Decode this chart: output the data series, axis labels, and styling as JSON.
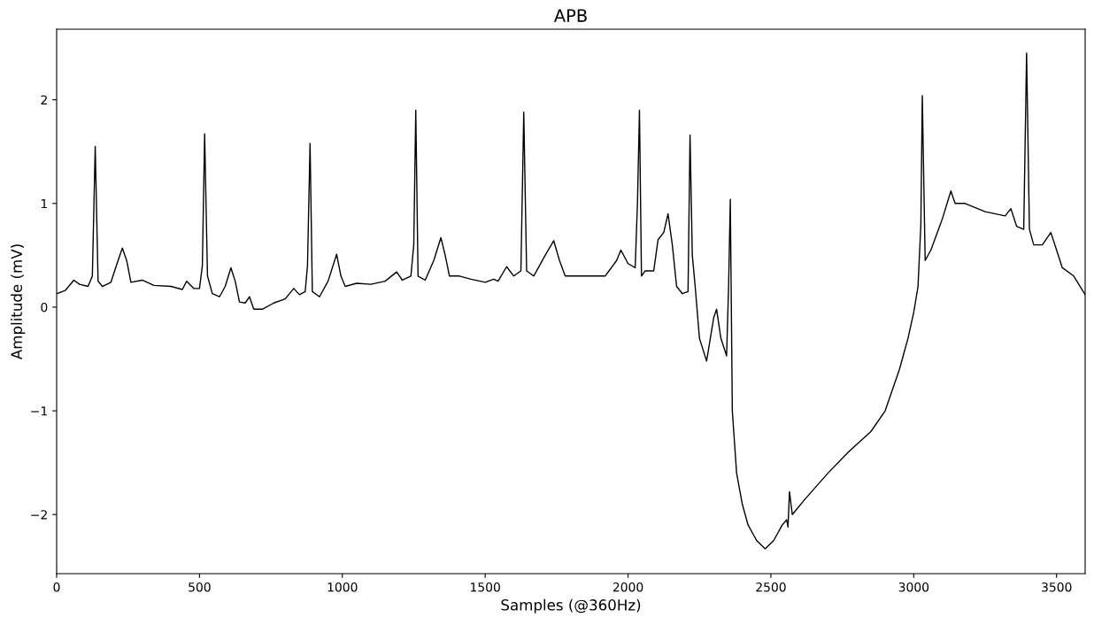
{
  "chart_data": {
    "type": "line",
    "title": "APB",
    "xlabel": "Samples (@360Hz)",
    "ylabel": "Amplitude (mV)",
    "xlim": [
      0,
      3600
    ],
    "xticks": [
      0,
      500,
      1000,
      1500,
      2000,
      2500,
      3000,
      3500
    ],
    "ylim": [
      -2.57,
      2.68
    ],
    "yticks": [
      {
        "value": -2,
        "label": "−2"
      },
      {
        "value": -1,
        "label": "−1"
      },
      0,
      1,
      2
    ],
    "grid": false,
    "legend": false,
    "marker": "none",
    "line_style": "solid",
    "series": [
      {
        "color": "#000000",
        "x": [
          0,
          30,
          60,
          80,
          110,
          125,
          135,
          145,
          160,
          190,
          215,
          230,
          245,
          260,
          300,
          340,
          400,
          440,
          455,
          480,
          500,
          510,
          518,
          528,
          545,
          570,
          590,
          610,
          625,
          640,
          660,
          675,
          690,
          720,
          760,
          800,
          830,
          850,
          870,
          878,
          887,
          895,
          920,
          950,
          980,
          995,
          1010,
          1050,
          1100,
          1150,
          1190,
          1210,
          1240,
          1250,
          1257,
          1265,
          1290,
          1320,
          1345,
          1360,
          1375,
          1410,
          1450,
          1500,
          1530,
          1545,
          1575,
          1600,
          1625,
          1635,
          1645,
          1670,
          1710,
          1740,
          1760,
          1780,
          1820,
          1870,
          1920,
          1960,
          1975,
          2000,
          2025,
          2033,
          2040,
          2047,
          2060,
          2090,
          2105,
          2125,
          2140,
          2155,
          2170,
          2190,
          2210,
          2217,
          2225,
          2235,
          2250,
          2275,
          2300,
          2310,
          2325,
          2345,
          2352,
          2358,
          2365,
          2380,
          2400,
          2420,
          2450,
          2480,
          2510,
          2540,
          2555,
          2560,
          2565,
          2575,
          2620,
          2700,
          2770,
          2850,
          2900,
          2950,
          2980,
          3000,
          3015,
          3025,
          3030,
          3040,
          3060,
          3100,
          3130,
          3145,
          3180,
          3250,
          3320,
          3340,
          3360,
          3385,
          3395,
          3405,
          3420,
          3450,
          3480,
          3500,
          3520,
          3560,
          3600
        ],
        "values": [
          0.13,
          0.16,
          0.26,
          0.22,
          0.2,
          0.3,
          1.55,
          0.25,
          0.2,
          0.24,
          0.45,
          0.57,
          0.45,
          0.24,
          0.26,
          0.21,
          0.2,
          0.17,
          0.25,
          0.18,
          0.18,
          0.4,
          1.67,
          0.3,
          0.13,
          0.1,
          0.2,
          0.38,
          0.25,
          0.05,
          0.04,
          0.1,
          -0.02,
          -0.02,
          0.04,
          0.08,
          0.18,
          0.12,
          0.15,
          0.4,
          1.58,
          0.15,
          0.1,
          0.25,
          0.51,
          0.3,
          0.2,
          0.23,
          0.22,
          0.25,
          0.34,
          0.26,
          0.3,
          0.6,
          1.9,
          0.3,
          0.26,
          0.45,
          0.67,
          0.5,
          0.3,
          0.3,
          0.27,
          0.24,
          0.27,
          0.25,
          0.39,
          0.3,
          0.35,
          1.88,
          0.35,
          0.3,
          0.5,
          0.64,
          0.45,
          0.3,
          0.3,
          0.3,
          0.3,
          0.45,
          0.55,
          0.42,
          0.38,
          1.0,
          1.9,
          0.3,
          0.35,
          0.35,
          0.65,
          0.72,
          0.9,
          0.6,
          0.2,
          0.13,
          0.15,
          1.66,
          0.5,
          0.2,
          -0.3,
          -0.52,
          -0.1,
          -0.02,
          -0.3,
          -0.47,
          0.2,
          1.04,
          -1.0,
          -1.6,
          -1.9,
          -2.1,
          -2.25,
          -2.33,
          -2.25,
          -2.1,
          -2.05,
          -2.12,
          -1.78,
          -2.0,
          -1.85,
          -1.6,
          -1.4,
          -1.2,
          -1.0,
          -0.6,
          -0.3,
          -0.05,
          0.2,
          0.8,
          2.04,
          0.45,
          0.55,
          0.85,
          1.12,
          1.0,
          1.0,
          0.92,
          0.88,
          0.95,
          0.78,
          0.75,
          2.45,
          0.75,
          0.6,
          0.6,
          0.72,
          0.55,
          0.38,
          0.3,
          0.12
        ]
      }
    ]
  }
}
